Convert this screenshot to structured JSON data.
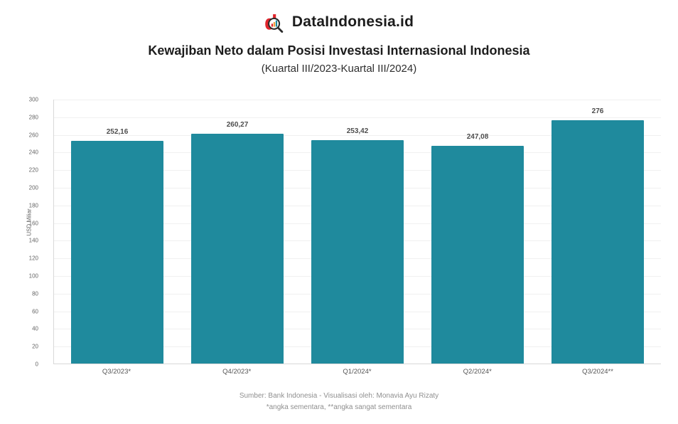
{
  "brand": {
    "name": "DataIndonesia.id"
  },
  "title": "Kewajiban Neto dalam Posisi Investasi Internasional Indonesia",
  "subtitle": "(Kuartal III/2023-Kuartal III/2024)",
  "chart_data": {
    "type": "bar",
    "categories": [
      "Q3/2023*",
      "Q4/2023*",
      "Q1/2024*",
      "Q2/2024*",
      "Q3/2024**"
    ],
    "values": [
      252.16,
      260.27,
      253.42,
      247.08,
      276
    ],
    "value_labels": [
      "252,16",
      "260,27",
      "253,42",
      "247,08",
      "276"
    ],
    "title": "Kewajiban Neto dalam Posisi Investasi Internasional Indonesia",
    "subtitle": "(Kuartal III/2023-Kuartal III/2024)",
    "xlabel": "",
    "ylabel": "USD Miliar",
    "ylim": [
      0,
      300
    ],
    "ytick_step": 20,
    "grid": true,
    "legend": false,
    "bar_color": "#1f8a9d"
  },
  "footer": {
    "source": "Sumber: Bank Indonesia - Visualisasi oleh: Monavia Ayu Rizaty",
    "note": "*angka sementara, **angka sangat sementara"
  }
}
